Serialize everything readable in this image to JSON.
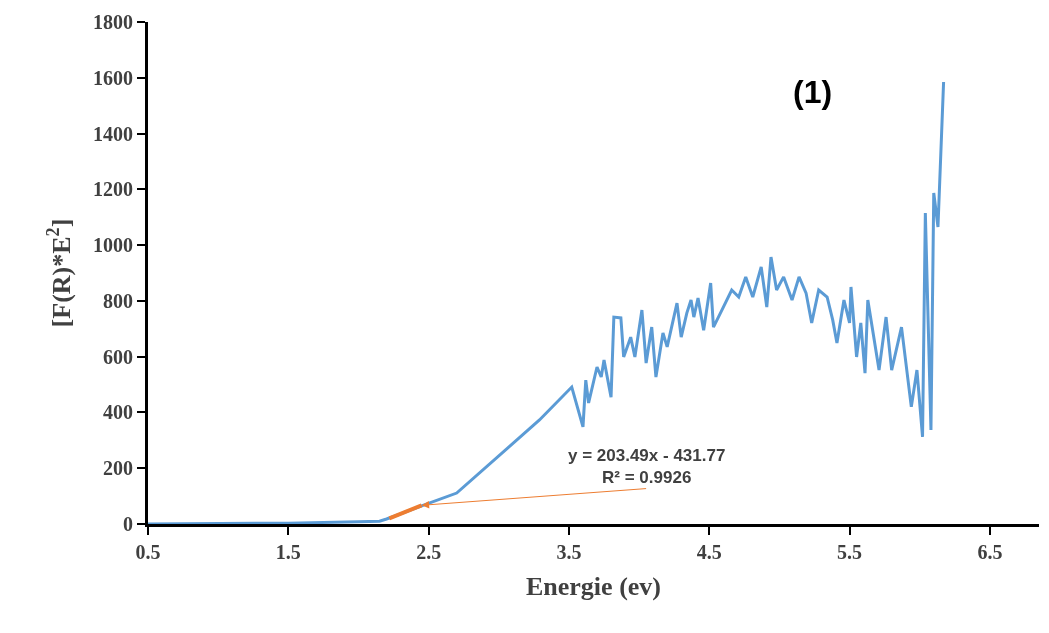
{
  "chart_data": {
    "type": "line",
    "xlabel": "Energie (ev)",
    "ylabel": "[F(R)*E$^{2}$]",
    "xlim": [
      0.5,
      6.85
    ],
    "xticks": [
      0.5,
      1.5,
      2.5,
      3.5,
      4.5,
      5.5,
      6.5
    ],
    "ylim": [
      0,
      1800
    ],
    "yticks": [
      0,
      200,
      400,
      600,
      800,
      1000,
      1200,
      1400,
      1600,
      1800
    ],
    "marker": "none",
    "line_style": "solid",
    "annotations": [
      {
        "text": "y = 203.49x - 431.77\nR² = 0.9926",
        "x": 2.45,
        "y": 67
      },
      "(1)"
    ],
    "series": [
      {
        "color": "#5b9bd5",
        "x": [
          0.5,
          1.5,
          2.0,
          2.15,
          2.2,
          2.3,
          2.45,
          2.7,
          3.29,
          3.52,
          3.6,
          3.62,
          3.64,
          3.7,
          3.73,
          3.75,
          3.8,
          3.82,
          3.87,
          3.89,
          3.94,
          3.97,
          4.02,
          4.05,
          4.09,
          4.12,
          4.17,
          4.2,
          4.27,
          4.3,
          4.34,
          4.37,
          4.39,
          4.42,
          4.46,
          4.51,
          4.53,
          4.59,
          4.66,
          4.71,
          4.76,
          4.81,
          4.87,
          4.91,
          4.94,
          4.98,
          5.03,
          5.09,
          5.14,
          5.19,
          5.23,
          5.28,
          5.34,
          5.38,
          5.41,
          5.46,
          5.5,
          5.51,
          5.55,
          5.58,
          5.61,
          5.63,
          5.71,
          5.76,
          5.8,
          5.87,
          5.94,
          5.98,
          6.02,
          6.04,
          6.08,
          6.1,
          6.13,
          6.17
        ],
        "values": [
          0,
          3,
          8,
          10,
          18,
          36,
          65,
          111,
          373,
          491,
          348,
          516,
          434,
          563,
          527,
          588,
          455,
          742,
          739,
          599,
          670,
          599,
          767,
          577,
          706,
          527,
          685,
          635,
          792,
          670,
          756,
          803,
          742,
          810,
          695,
          864,
          706,
          767,
          839,
          814,
          886,
          814,
          922,
          778,
          957,
          839,
          886,
          803,
          886,
          828,
          721,
          839,
          814,
          731,
          649,
          803,
          721,
          850,
          599,
          721,
          541,
          803,
          552,
          742,
          552,
          706,
          420,
          552,
          312,
          1115,
          337,
          1187,
          1065,
          1585
        ]
      },
      {
        "color": "#ed7d31",
        "x": [
          2.22,
          2.45
        ],
        "values": [
          20,
          67
        ]
      }
    ]
  }
}
